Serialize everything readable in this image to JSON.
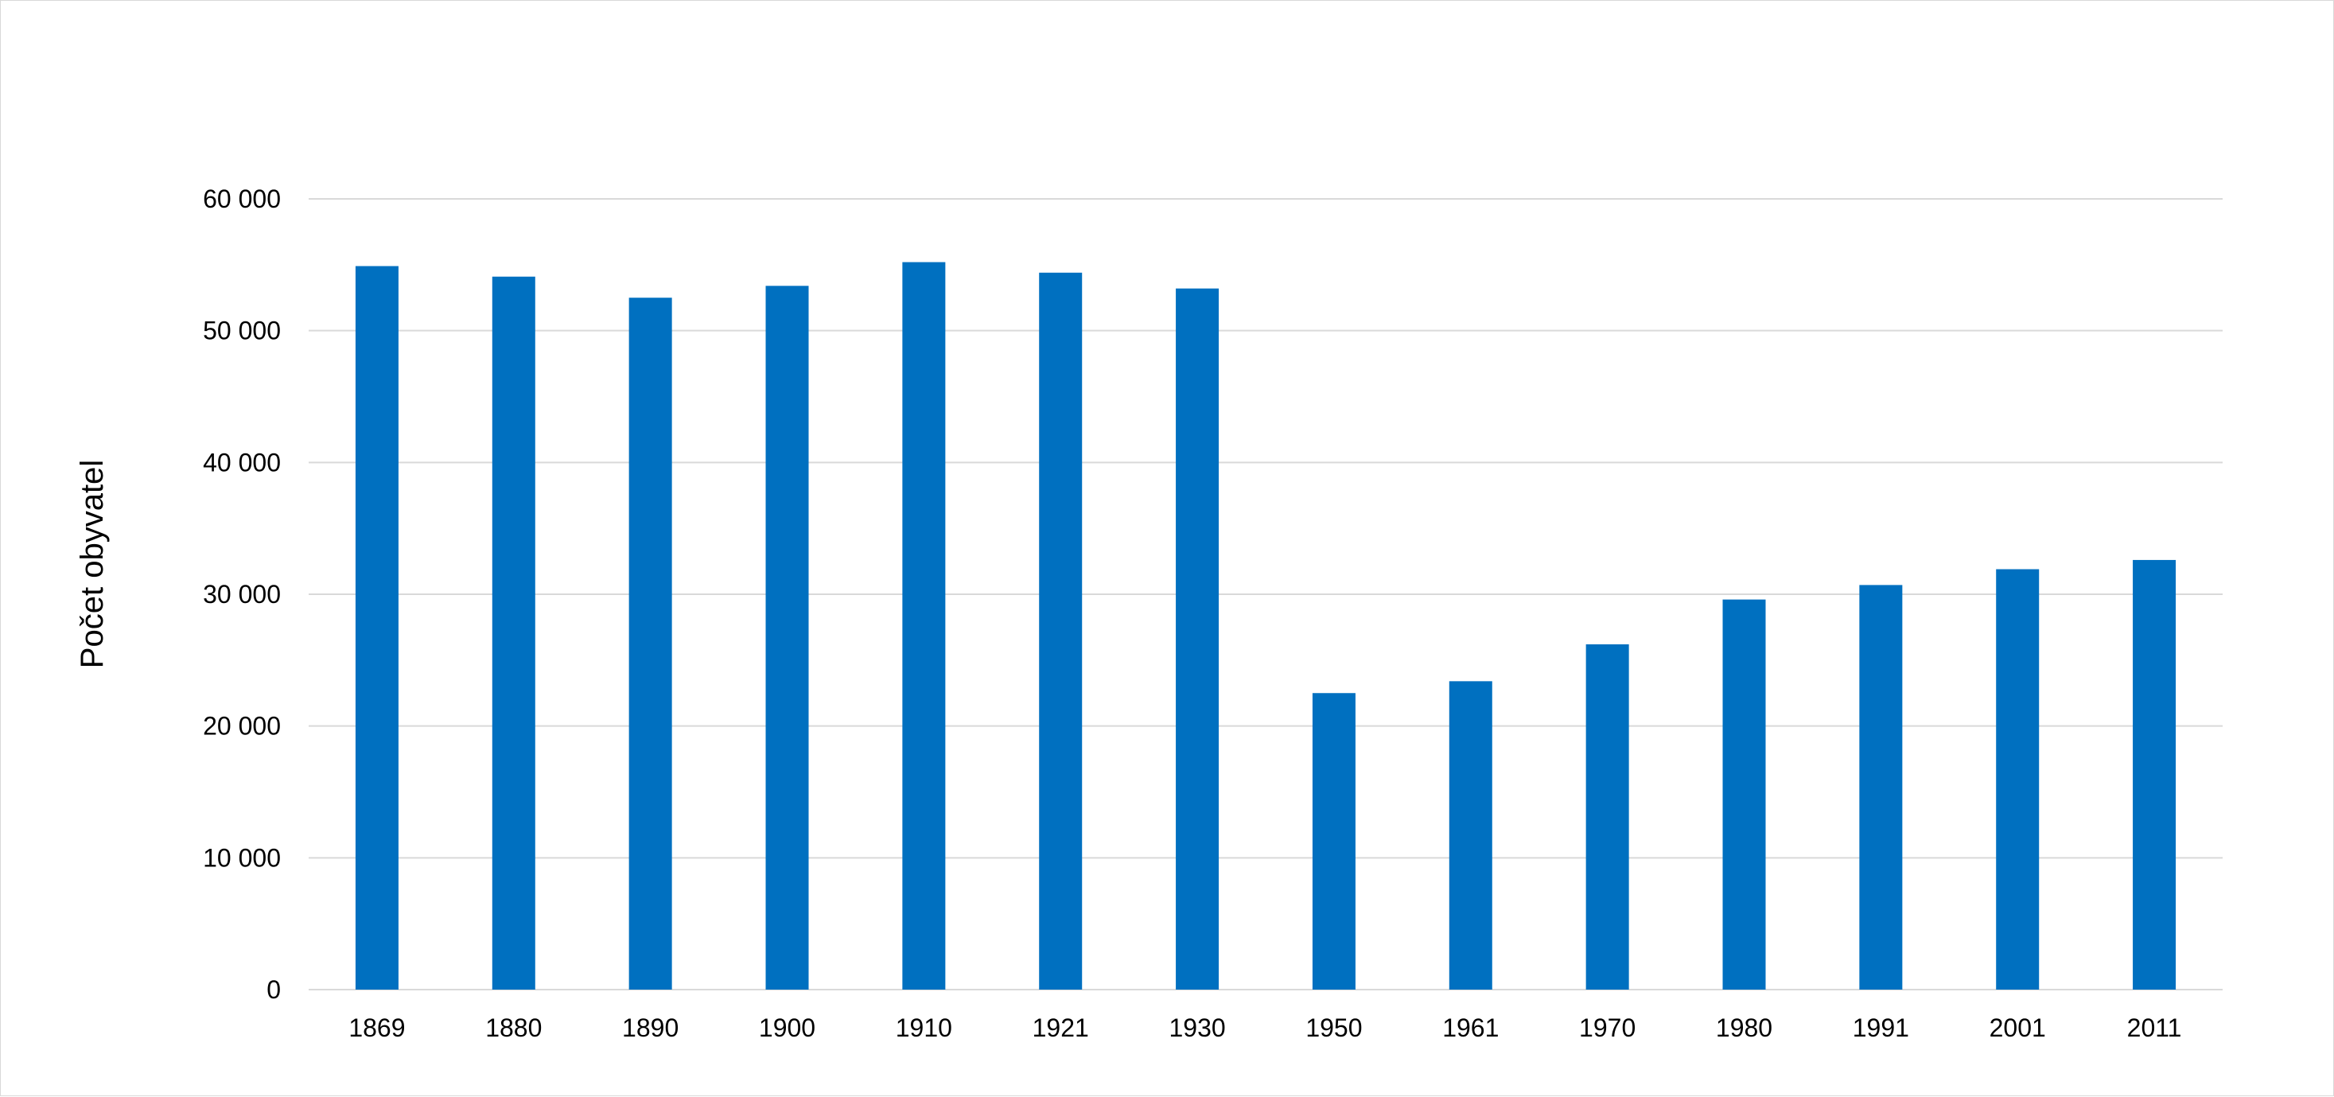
{
  "chart_data": {
    "type": "bar",
    "title": "",
    "xlabel": "",
    "ylabel": "Počet obyvatel",
    "categories": [
      "1869",
      "1880",
      "1890",
      "1900",
      "1910",
      "1921",
      "1930",
      "1950",
      "1961",
      "1970",
      "1980",
      "1991",
      "2001",
      "2011"
    ],
    "values": [
      54900,
      54100,
      52500,
      53400,
      55200,
      54400,
      53200,
      22500,
      23400,
      26200,
      29600,
      30700,
      31900,
      32600
    ],
    "ylim": [
      0,
      60000
    ],
    "yticks": [
      0,
      10000,
      20000,
      30000,
      40000,
      50000,
      60000
    ],
    "ytick_labels": [
      "0",
      "10 000",
      "20 000",
      "30 000",
      "40 000",
      "50 000",
      "60 000"
    ],
    "grid": true,
    "legend": "none",
    "bar_color": "#0070C0",
    "grid_color": "#D9D9D9"
  }
}
